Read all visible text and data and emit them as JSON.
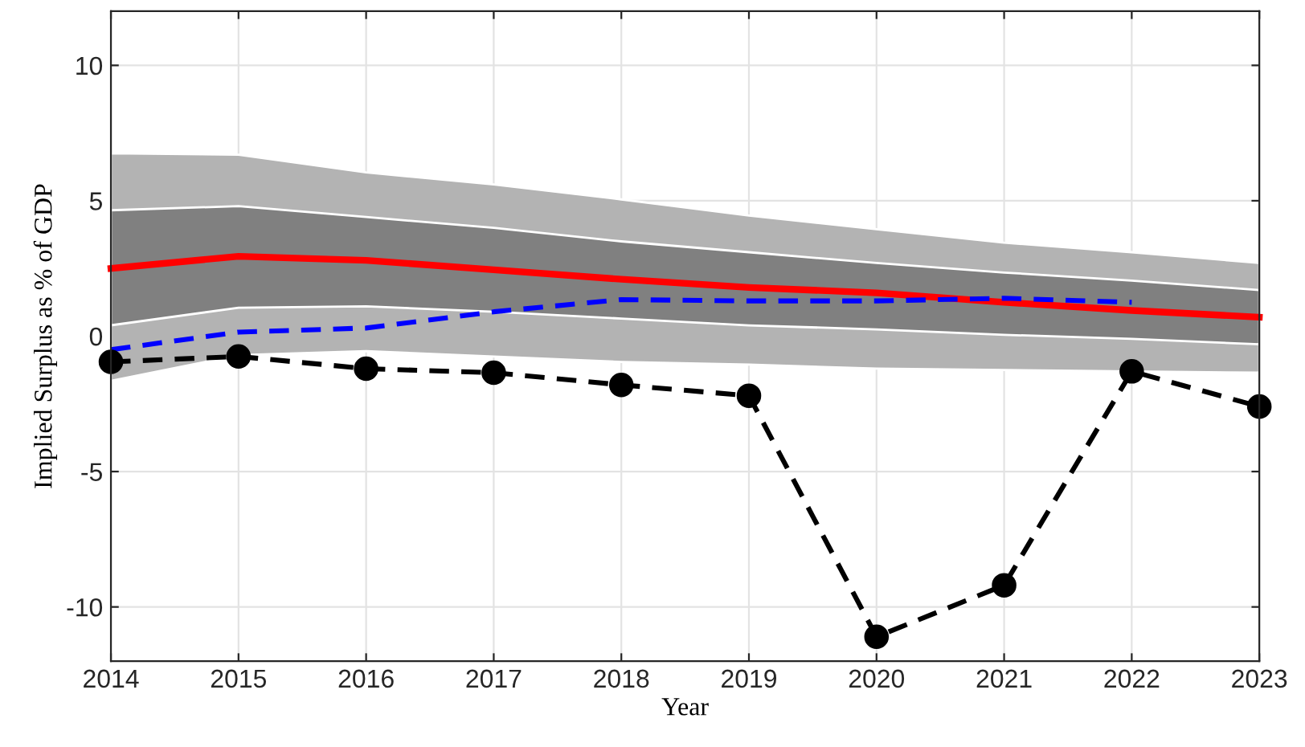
{
  "chart_data": {
    "type": "line",
    "xlabel": "Year",
    "ylabel": "Implied Surplus as % of GDP",
    "x": [
      2014,
      2015,
      2016,
      2017,
      2018,
      2019,
      2020,
      2021,
      2022,
      2023
    ],
    "series": [
      {
        "type": "line",
        "color": "#b3b3b3",
        "values": [
          null,
          null,
          null,
          null,
          null,
          null,
          null,
          null,
          null,
          null
        ],
        "upper": [
          6.75,
          6.7,
          6.05,
          5.6,
          5.05,
          4.45,
          3.95,
          3.45,
          3.1,
          2.7
        ],
        "lower": [
          -1.65,
          -0.7,
          -0.55,
          -0.75,
          -0.95,
          -1.05,
          -1.2,
          -1.25,
          -1.3,
          -1.35
        ]
      },
      {
        "type": "line",
        "color": "#808080",
        "values": [
          null,
          null,
          null,
          null,
          null,
          null,
          null,
          null,
          null,
          null
        ],
        "upper": [
          4.65,
          4.8,
          4.4,
          4.0,
          3.5,
          3.1,
          2.7,
          2.35,
          2.05,
          1.7
        ],
        "lower": [
          0.4,
          1.05,
          1.1,
          0.9,
          0.65,
          0.4,
          0.25,
          0.05,
          -0.1,
          -0.3
        ]
      },
      {
        "type": "line",
        "color": "#ff0000",
        "line_style": "solid",
        "marker": "none",
        "values": [
          2.5,
          2.95,
          2.8,
          2.45,
          2.1,
          1.8,
          1.6,
          1.25,
          0.95,
          0.7
        ]
      },
      {
        "type": "line",
        "color": "#0000ff",
        "line_style": "dashed",
        "marker": "none",
        "values": [
          -0.5,
          0.15,
          0.3,
          0.9,
          1.35,
          1.3,
          1.3,
          1.4,
          1.25,
          null
        ]
      },
      {
        "type": "line",
        "color": "#000000",
        "line_style": "dashed",
        "marker": "circle",
        "values": [
          -0.95,
          -0.75,
          -1.2,
          -1.35,
          -1.8,
          -2.2,
          -11.1,
          -9.2,
          -1.3,
          -2.6
        ]
      }
    ],
    "xlim": [
      2014,
      2023
    ],
    "xticks": [
      2014,
      2015,
      2016,
      2017,
      2018,
      2019,
      2020,
      2021,
      2022,
      2023
    ],
    "ylim": [
      -12,
      12
    ],
    "yticks": [
      -10,
      -5,
      0,
      5,
      10
    ],
    "grid": true,
    "legend": false
  }
}
